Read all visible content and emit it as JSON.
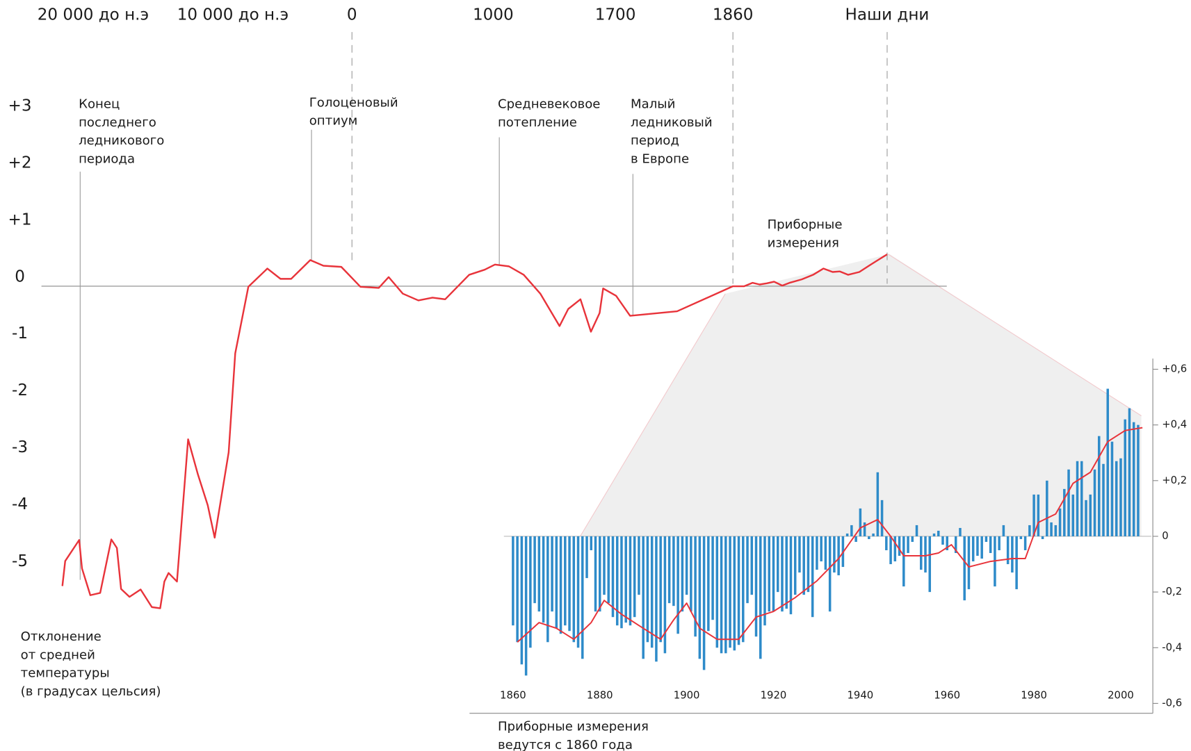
{
  "chart_data": [
    {
      "type": "line",
      "xticks": [
        {
          "value": -20000,
          "label": "20 000 до н.э"
        },
        {
          "value": -10000,
          "label": "10 000 до н.э"
        },
        0,
        1000,
        1700,
        1860,
        {
          "value": 2010,
          "label": "Наши дни"
        }
      ],
      "xlim": [
        -23700,
        2068
      ],
      "ylim": [
        -6,
        3.5
      ],
      "yticks": [
        {
          "value": 3,
          "label": "+3"
        },
        {
          "value": 2,
          "label": "+2"
        },
        {
          "value": 1,
          "label": "+1"
        },
        0,
        -1,
        -2,
        -3,
        -4,
        -5
      ],
      "color": "#e8333a",
      "x": [
        -22200,
        -22000,
        -21000,
        -20800,
        -20200,
        -19500,
        -18700,
        -18300,
        -18000,
        -17400,
        -16600,
        -15800,
        -15200,
        -14900,
        -14600,
        -14000,
        -13200,
        -12500,
        -11800,
        -11300,
        -10300,
        -9800,
        -8700,
        -7100,
        -6000,
        -5100,
        -3500,
        -2400,
        -900,
        60,
        190,
        260,
        360,
        470,
        570,
        660,
        830,
        940,
        1010,
        1090,
        1175,
        1270,
        1380,
        1430,
        1500,
        1560,
        1610,
        1630,
        1701,
        1720,
        1784,
        1860,
        1871,
        1879,
        1886,
        1893,
        1900,
        1908,
        1915,
        1927,
        1938,
        1948,
        1957,
        1964,
        1972,
        1983,
        1994,
        2001,
        2010
      ],
      "values": [
        -5.27,
        -4.83,
        -4.46,
        -4.96,
        -5.43,
        -5.39,
        -4.45,
        -4.6,
        -5.32,
        -5.46,
        -5.33,
        -5.64,
        -5.66,
        -5.19,
        -5.04,
        -5.19,
        -2.69,
        -3.31,
        -3.85,
        -4.42,
        -2.92,
        -1.18,
        -0.01,
        0.31,
        0.13,
        0.13,
        0.46,
        0.36,
        0.34,
        -0.01,
        -0.03,
        0.16,
        -0.13,
        -0.25,
        -0.2,
        -0.23,
        0.2,
        0.29,
        0.38,
        0.35,
        0.2,
        -0.13,
        -0.7,
        -0.4,
        -0.23,
        -0.8,
        -0.47,
        -0.04,
        -0.17,
        -0.52,
        -0.44,
        0,
        0,
        0.06,
        0.03,
        0.05,
        0.08,
        0.01,
        0.06,
        0.12,
        0.2,
        0.31,
        0.25,
        0.26,
        0.2,
        0.25,
        0.38,
        0.46,
        0.56
      ],
      "annotations": [
        {
          "lines": [
            "Конец",
            "последнего",
            "ледникового",
            "периода"
          ]
        },
        {
          "lines": [
            "Голоценовый",
            "оптиум"
          ]
        },
        {
          "lines": [
            "Средневековое",
            "потепление"
          ]
        },
        {
          "lines": [
            "Малый",
            "ледниковый",
            "период",
            "в Европе"
          ]
        },
        {
          "lines": [
            "Приборные",
            "измерения"
          ]
        }
      ],
      "ylabel": [
        "Отклонение",
        "от средней",
        "температуры",
        "(в градусах цельсия)"
      ]
    },
    {
      "type": "bar",
      "xlim": [
        1858,
        2007
      ],
      "xticks": [
        1860,
        1880,
        1900,
        1920,
        1940,
        1960,
        1980,
        2000
      ],
      "ylim": [
        -0.6,
        0.6
      ],
      "yticks": [
        {
          "value": 0.6,
          "label": "+0,6"
        },
        {
          "value": 0.4,
          "label": "+0,4"
        },
        {
          "value": 0.2,
          "label": "+0,2"
        },
        0,
        {
          "value": -0.2,
          "label": "-0,2"
        },
        {
          "value": -0.4,
          "label": "-0,4"
        },
        {
          "value": -0.6,
          "label": "-0,6"
        }
      ],
      "series": [
        {
          "type": "bar",
          "color": "#2e8bc9",
          "x": [
            1860,
            1861,
            1862,
            1863,
            1864,
            1865,
            1866,
            1867,
            1868,
            1869,
            1870,
            1871,
            1872,
            1873,
            1874,
            1875,
            1876,
            1877,
            1878,
            1879,
            1880,
            1881,
            1882,
            1883,
            1884,
            1885,
            1886,
            1887,
            1888,
            1889,
            1890,
            1891,
            1892,
            1893,
            1894,
            1895,
            1896,
            1897,
            1898,
            1899,
            1900,
            1901,
            1902,
            1903,
            1904,
            1905,
            1906,
            1907,
            1908,
            1909,
            1910,
            1911,
            1912,
            1913,
            1914,
            1915,
            1916,
            1917,
            1918,
            1919,
            1920,
            1921,
            1922,
            1923,
            1924,
            1925,
            1926,
            1927,
            1928,
            1929,
            1930,
            1931,
            1932,
            1933,
            1934,
            1935,
            1936,
            1937,
            1938,
            1939,
            1940,
            1941,
            1942,
            1943,
            1944,
            1945,
            1946,
            1947,
            1948,
            1949,
            1950,
            1951,
            1952,
            1953,
            1954,
            1955,
            1956,
            1957,
            1958,
            1959,
            1960,
            1961,
            1962,
            1963,
            1964,
            1965,
            1966,
            1967,
            1968,
            1969,
            1970,
            1971,
            1972,
            1973,
            1974,
            1975,
            1976,
            1977,
            1978,
            1979,
            1980,
            1981,
            1982,
            1983,
            1984,
            1985,
            1986,
            1987,
            1988,
            1989,
            1990,
            1991,
            1992,
            1993,
            1994,
            1995,
            1996,
            1997,
            1998,
            1999,
            2000,
            2001,
            2002,
            2003,
            2004
          ],
          "values": [
            -0.32,
            -0.38,
            -0.46,
            -0.5,
            -0.4,
            -0.24,
            -0.27,
            -0.31,
            -0.38,
            -0.27,
            -0.33,
            -0.35,
            -0.32,
            -0.34,
            -0.38,
            -0.4,
            -0.44,
            -0.15,
            -0.05,
            -0.27,
            -0.27,
            -0.21,
            -0.24,
            -0.29,
            -0.32,
            -0.33,
            -0.31,
            -0.32,
            -0.29,
            -0.21,
            -0.44,
            -0.38,
            -0.4,
            -0.45,
            -0.38,
            -0.42,
            -0.24,
            -0.25,
            -0.35,
            -0.27,
            -0.21,
            -0.27,
            -0.36,
            -0.44,
            -0.48,
            -0.34,
            -0.3,
            -0.4,
            -0.42,
            -0.42,
            -0.4,
            -0.41,
            -0.39,
            -0.38,
            -0.24,
            -0.21,
            -0.36,
            -0.44,
            -0.32,
            -0.27,
            -0.27,
            -0.2,
            -0.27,
            -0.26,
            -0.28,
            -0.21,
            -0.13,
            -0.21,
            -0.2,
            -0.29,
            -0.12,
            -0.09,
            -0.12,
            -0.27,
            -0.13,
            -0.14,
            -0.11,
            0.01,
            0.04,
            -0.02,
            0.1,
            0.05,
            -0.01,
            0.01,
            0.23,
            0.13,
            -0.05,
            -0.1,
            -0.09,
            -0.07,
            -0.18,
            -0.06,
            -0.02,
            0.04,
            -0.12,
            -0.13,
            -0.2,
            0.01,
            0.02,
            -0.03,
            -0.05,
            0,
            -0.06,
            0.03,
            -0.23,
            -0.19,
            -0.09,
            -0.07,
            -0.08,
            -0.02,
            -0.06,
            -0.18,
            -0.05,
            0.04,
            -0.1,
            -0.13,
            -0.19,
            -0.01,
            -0.05,
            0.04,
            0.15,
            0.15,
            -0.01,
            0.2,
            0.05,
            0.04,
            0.1,
            0.17,
            0.24,
            0.15,
            0.27,
            0.27,
            0.13,
            0.15,
            0.24,
            0.36,
            0.26,
            0.53,
            0.34,
            0.27,
            0.28,
            0.42,
            0.46,
            0.41,
            0.4
          ]
        },
        {
          "type": "line",
          "color": "#e8333a",
          "x": [
            1861,
            1866,
            1870,
            1874,
            1878,
            1881,
            1885,
            1890,
            1894,
            1897,
            1900,
            1903,
            1907,
            1912,
            1916,
            1920,
            1925,
            1930,
            1935,
            1940,
            1944,
            1947,
            1950,
            1955,
            1958,
            1961,
            1965,
            1970,
            1975,
            1978,
            1981,
            1985,
            1989,
            1993,
            1997,
            2001,
            2005
          ],
          "values": [
            -0.38,
            -0.31,
            -0.33,
            -0.37,
            -0.31,
            -0.23,
            -0.28,
            -0.33,
            -0.37,
            -0.3,
            -0.24,
            -0.33,
            -0.37,
            -0.37,
            -0.29,
            -0.27,
            -0.22,
            -0.16,
            -0.08,
            0.03,
            0.06,
            0,
            -0.07,
            -0.07,
            -0.06,
            -0.03,
            -0.11,
            -0.09,
            -0.08,
            -0.08,
            0.05,
            0.08,
            0.19,
            0.23,
            0.34,
            0.38,
            0.39
          ]
        }
      ],
      "note": [
        "Приборные измерения",
        "ведутся с 1860 года"
      ]
    }
  ]
}
